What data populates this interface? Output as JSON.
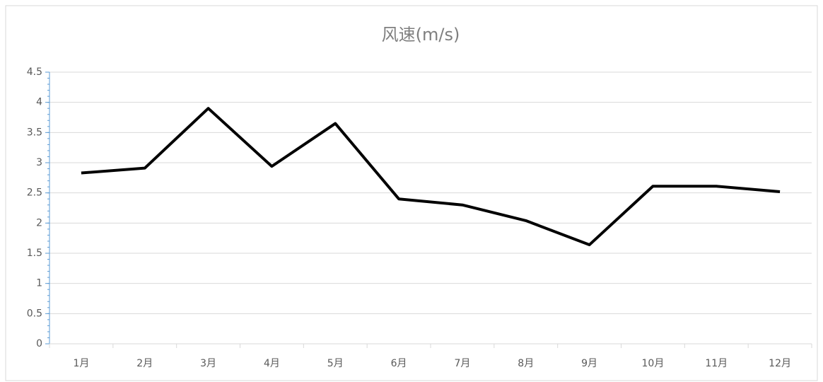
{
  "chart_data": {
    "type": "line",
    "title": "风速(m/s)",
    "categories": [
      "1月",
      "2月",
      "3月",
      "4月",
      "5月",
      "6月",
      "7月",
      "8月",
      "9月",
      "10月",
      "11月",
      "12月"
    ],
    "series": [
      {
        "name": "风速(m/s)",
        "color": "#000000",
        "values": [
          2.83,
          2.91,
          3.9,
          2.94,
          3.65,
          2.4,
          2.3,
          2.04,
          1.64,
          2.61,
          2.61,
          2.52
        ]
      }
    ],
    "ylim": [
      0,
      4.5
    ],
    "yticks": [
      0,
      0.5,
      1,
      1.5,
      2,
      2.5,
      3,
      3.5,
      4,
      4.5
    ],
    "grid": true
  }
}
